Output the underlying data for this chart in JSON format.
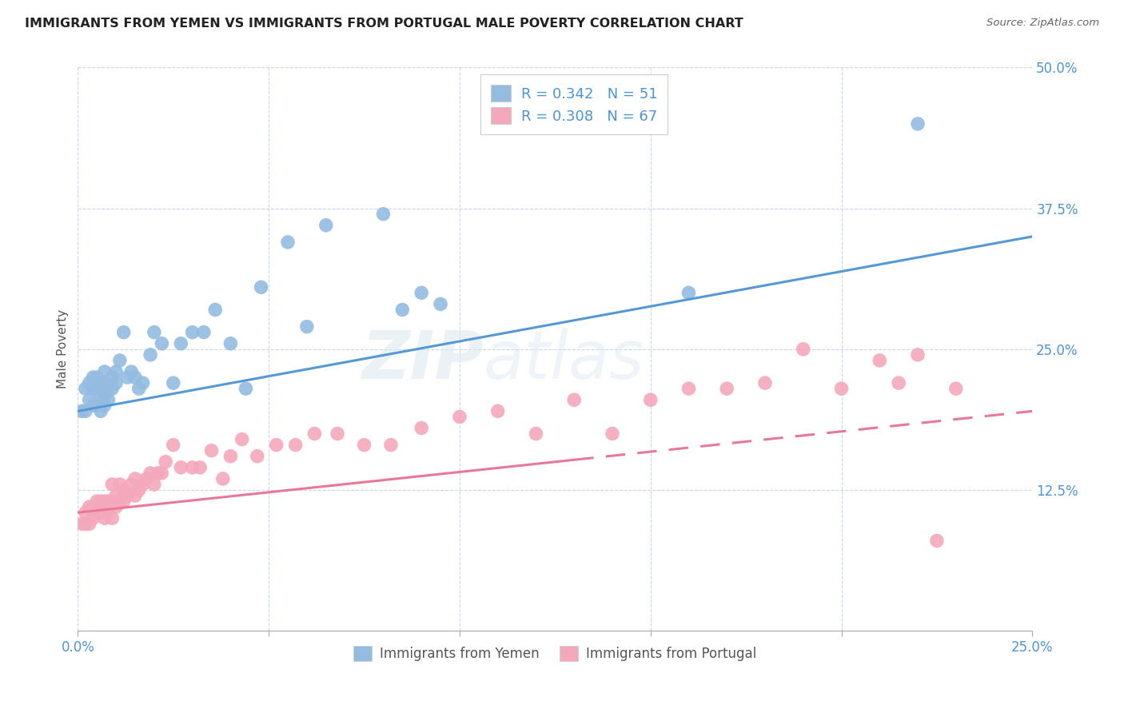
{
  "title": "IMMIGRANTS FROM YEMEN VS IMMIGRANTS FROM PORTUGAL MALE POVERTY CORRELATION CHART",
  "source": "Source: ZipAtlas.com",
  "ylabel": "Male Poverty",
  "xlim": [
    0.0,
    0.25
  ],
  "ylim": [
    0.0,
    0.5
  ],
  "xticks": [
    0.0,
    0.05,
    0.1,
    0.15,
    0.2,
    0.25
  ],
  "yticks": [
    0.0,
    0.125,
    0.25,
    0.375,
    0.5
  ],
  "xticklabels": [
    "0.0%",
    "",
    "",
    "",
    "",
    "25.0%"
  ],
  "yticklabels": [
    "",
    "12.5%",
    "25.0%",
    "37.5%",
    "50.0%"
  ],
  "legend_labels": [
    "Immigrants from Yemen",
    "Immigrants from Portugal"
  ],
  "blue_color": "#94bce0",
  "pink_color": "#f4a8bc",
  "blue_line_color": "#5599d4",
  "pink_line_color": "#e87898",
  "yemen_x": [
    0.001,
    0.002,
    0.002,
    0.003,
    0.003,
    0.004,
    0.004,
    0.004,
    0.005,
    0.005,
    0.005,
    0.006,
    0.006,
    0.006,
    0.007,
    0.007,
    0.007,
    0.007,
    0.008,
    0.008,
    0.009,
    0.009,
    0.01,
    0.01,
    0.011,
    0.012,
    0.013,
    0.014,
    0.015,
    0.016,
    0.017,
    0.019,
    0.02,
    0.022,
    0.025,
    0.027,
    0.03,
    0.033,
    0.036,
    0.04,
    0.044,
    0.048,
    0.055,
    0.06,
    0.065,
    0.08,
    0.085,
    0.09,
    0.095,
    0.16,
    0.22
  ],
  "yemen_y": [
    0.195,
    0.195,
    0.215,
    0.205,
    0.22,
    0.2,
    0.215,
    0.225,
    0.2,
    0.215,
    0.225,
    0.195,
    0.21,
    0.22,
    0.2,
    0.21,
    0.22,
    0.23,
    0.205,
    0.215,
    0.215,
    0.225,
    0.22,
    0.23,
    0.24,
    0.265,
    0.225,
    0.23,
    0.225,
    0.215,
    0.22,
    0.245,
    0.265,
    0.255,
    0.22,
    0.255,
    0.265,
    0.265,
    0.285,
    0.255,
    0.215,
    0.305,
    0.345,
    0.27,
    0.36,
    0.37,
    0.285,
    0.3,
    0.29,
    0.3,
    0.45
  ],
  "portugal_x": [
    0.001,
    0.002,
    0.002,
    0.003,
    0.003,
    0.004,
    0.004,
    0.005,
    0.005,
    0.006,
    0.006,
    0.007,
    0.007,
    0.008,
    0.008,
    0.009,
    0.009,
    0.01,
    0.01,
    0.011,
    0.011,
    0.012,
    0.012,
    0.013,
    0.014,
    0.015,
    0.015,
    0.016,
    0.017,
    0.018,
    0.019,
    0.02,
    0.021,
    0.022,
    0.023,
    0.025,
    0.027,
    0.03,
    0.032,
    0.035,
    0.038,
    0.04,
    0.043,
    0.047,
    0.052,
    0.057,
    0.062,
    0.068,
    0.075,
    0.082,
    0.09,
    0.1,
    0.11,
    0.12,
    0.13,
    0.14,
    0.15,
    0.16,
    0.17,
    0.18,
    0.19,
    0.2,
    0.21,
    0.215,
    0.22,
    0.225,
    0.23
  ],
  "portugal_y": [
    0.095,
    0.095,
    0.105,
    0.095,
    0.11,
    0.1,
    0.11,
    0.105,
    0.115,
    0.105,
    0.115,
    0.1,
    0.115,
    0.105,
    0.115,
    0.1,
    0.13,
    0.11,
    0.12,
    0.115,
    0.13,
    0.115,
    0.125,
    0.12,
    0.13,
    0.12,
    0.135,
    0.125,
    0.13,
    0.135,
    0.14,
    0.13,
    0.14,
    0.14,
    0.15,
    0.165,
    0.145,
    0.145,
    0.145,
    0.16,
    0.135,
    0.155,
    0.17,
    0.155,
    0.165,
    0.165,
    0.175,
    0.175,
    0.165,
    0.165,
    0.18,
    0.19,
    0.195,
    0.175,
    0.205,
    0.175,
    0.205,
    0.215,
    0.215,
    0.22,
    0.25,
    0.215,
    0.24,
    0.22,
    0.245,
    0.08,
    0.215
  ]
}
